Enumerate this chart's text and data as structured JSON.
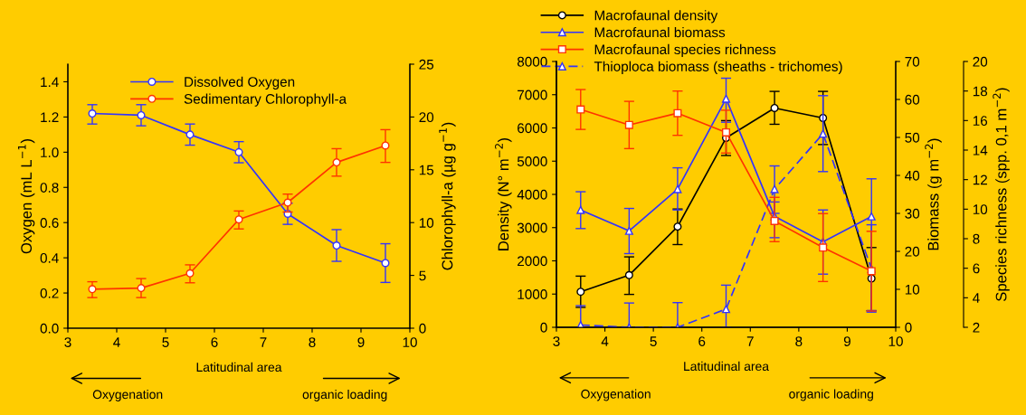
{
  "chart_data": [
    {
      "type": "line",
      "xlabel": "Latitudinal area",
      "ylabel": "Oxygen (mL L$^{−1}$)",
      "y2label": "Chlorophyll-a (µg g$^{−1}$)",
      "x": [
        3.5,
        4.5,
        5.5,
        6.5,
        7.5,
        8.5,
        9.5
      ],
      "xlim": [
        3,
        10
      ],
      "xticks": [
        3,
        4,
        5,
        6,
        7,
        8,
        9,
        10
      ],
      "ylim": [
        0,
        1.5
      ],
      "yticks": [
        {
          "value": 0,
          "label": "0.0"
        },
        {
          "value": 0.2,
          "label": "0.2"
        },
        {
          "value": 0.4,
          "label": "0.4"
        },
        {
          "value": 0.6,
          "label": "0.6"
        },
        {
          "value": 0.8,
          "label": "0.8"
        },
        {
          "value": 1.0,
          "label": "1.0"
        },
        {
          "value": 1.2,
          "label": "1.2"
        },
        {
          "value": 1.4,
          "label": "1.4"
        }
      ],
      "y2lim": [
        0,
        25
      ],
      "y2ticks": [
        0,
        5,
        10,
        15,
        20,
        25
      ],
      "legend": "top",
      "grid": false,
      "series": [
        {
          "name": "Dissolved Oxygen",
          "color": "#3333ff",
          "marker": "circle",
          "values": [
            1.22,
            1.21,
            1.1,
            1.0,
            0.65,
            0.47,
            0.37
          ],
          "errors": [
            [
              1.16,
              1.27
            ],
            [
              1.15,
              1.27
            ],
            [
              1.04,
              1.16
            ],
            [
              0.94,
              1.06
            ],
            [
              0.59,
              0.71
            ],
            [
              0.38,
              0.56
            ],
            [
              0.26,
              0.48
            ]
          ]
        },
        {
          "name": "Sedimentary Chlorophyll-a",
          "color": "#ff3300",
          "marker": "circle",
          "axis": "y2",
          "values": [
            3.7,
            3.8,
            5.2,
            10.3,
            11.9,
            15.7,
            17.3
          ],
          "errors": [
            [
              2.9,
              4.4
            ],
            [
              2.9,
              4.7
            ],
            [
              4.3,
              6.0
            ],
            [
              9.4,
              11.1
            ],
            [
              11.0,
              12.7
            ],
            [
              14.4,
              17.0
            ],
            [
              15.7,
              18.8
            ]
          ]
        }
      ],
      "annotations": [
        "Oxygenation",
        "organic loading"
      ]
    },
    {
      "type": "line",
      "xlabel": "Latitudinal area",
      "ylabel": "Density (N° m$^{−2}$)",
      "y2label": "Biomass (g m$^{−2}$)",
      "y3label": "Species richness (spp. 0,1 m$^{−2}$)",
      "x": [
        3.5,
        4.5,
        5.5,
        6.5,
        7.5,
        8.5,
        9.5
      ],
      "xlim": [
        3,
        10
      ],
      "xticks": [
        3,
        4,
        5,
        6,
        7,
        8,
        9,
        10
      ],
      "ylim": [
        0,
        8000
      ],
      "yticks": [
        0,
        1000,
        2000,
        3000,
        4000,
        5000,
        6000,
        7000,
        8000
      ],
      "y2lim": [
        0,
        70
      ],
      "y2ticks": [
        0,
        10,
        20,
        30,
        40,
        50,
        60,
        70
      ],
      "y3lim": [
        2,
        20
      ],
      "y3ticks": [
        2,
        4,
        6,
        8,
        10,
        12,
        14,
        16,
        18,
        20
      ],
      "legend": "top",
      "grid": false,
      "series": [
        {
          "name": "Macrofaunal density",
          "color": "#000000",
          "marker": "circle",
          "values": [
            1070,
            1570,
            3030,
            5700,
            6600,
            6300,
            1470
          ],
          "errors": [
            [
              600,
              1540
            ],
            [
              990,
              2120
            ],
            [
              2490,
              3560
            ],
            [
              5170,
              6220
            ],
            [
              6110,
              7100
            ],
            [
              5500,
              7100
            ],
            [
              500,
              2400
            ]
          ]
        },
        {
          "name": "Macrofaunal biomass",
          "color": "#3333ff",
          "marker": "triangle",
          "axis": "y2",
          "values": [
            30.9,
            25.4,
            36.4,
            60.2,
            29.2,
            22.5,
            29.2
          ],
          "errors": [
            [
              26.0,
              35.7
            ],
            [
              19.4,
              31.3
            ],
            [
              30.9,
              42.0
            ],
            [
              54.0,
              65.6
            ],
            [
              23.6,
              33.0
            ],
            [
              14.0,
              30.9
            ],
            [
              4.4,
              39.1
            ]
          ]
        },
        {
          "name": "Macrofaunal species richness",
          "color": "#ff3300",
          "marker": "square",
          "axis": "y3",
          "values": [
            16.75,
            15.7,
            16.5,
            15.2,
            9.2,
            7.4,
            5.8
          ],
          "errors": [
            [
              15.4,
              18.1
            ],
            [
              14.1,
              17.3
            ],
            [
              15.0,
              18.0
            ],
            [
              13.8,
              16.7
            ],
            [
              7.8,
              10.8
            ],
            [
              5.1,
              9.7
            ],
            [
              3.1,
              8.5
            ]
          ]
        },
        {
          "name": "Thioploca biomass (sheaths - trichomes)",
          "color": "#3333ff",
          "marker": "triangle",
          "line_style": "dashed",
          "axis": "y2",
          "values": [
            0.6,
            0,
            0,
            4.8,
            36.4,
            51.0,
            15.4
          ],
          "errors": [
            [
              0,
              5.7
            ],
            [
              0,
              6.4
            ],
            [
              0,
              6.5
            ],
            [
              0,
              11.1
            ],
            [
              30.0,
              42.5
            ],
            [
              41.0,
              61.0
            ],
            [
              4.0,
              27.0
            ]
          ]
        }
      ],
      "annotations": [
        "Oxygenation",
        "organic loading"
      ]
    }
  ]
}
